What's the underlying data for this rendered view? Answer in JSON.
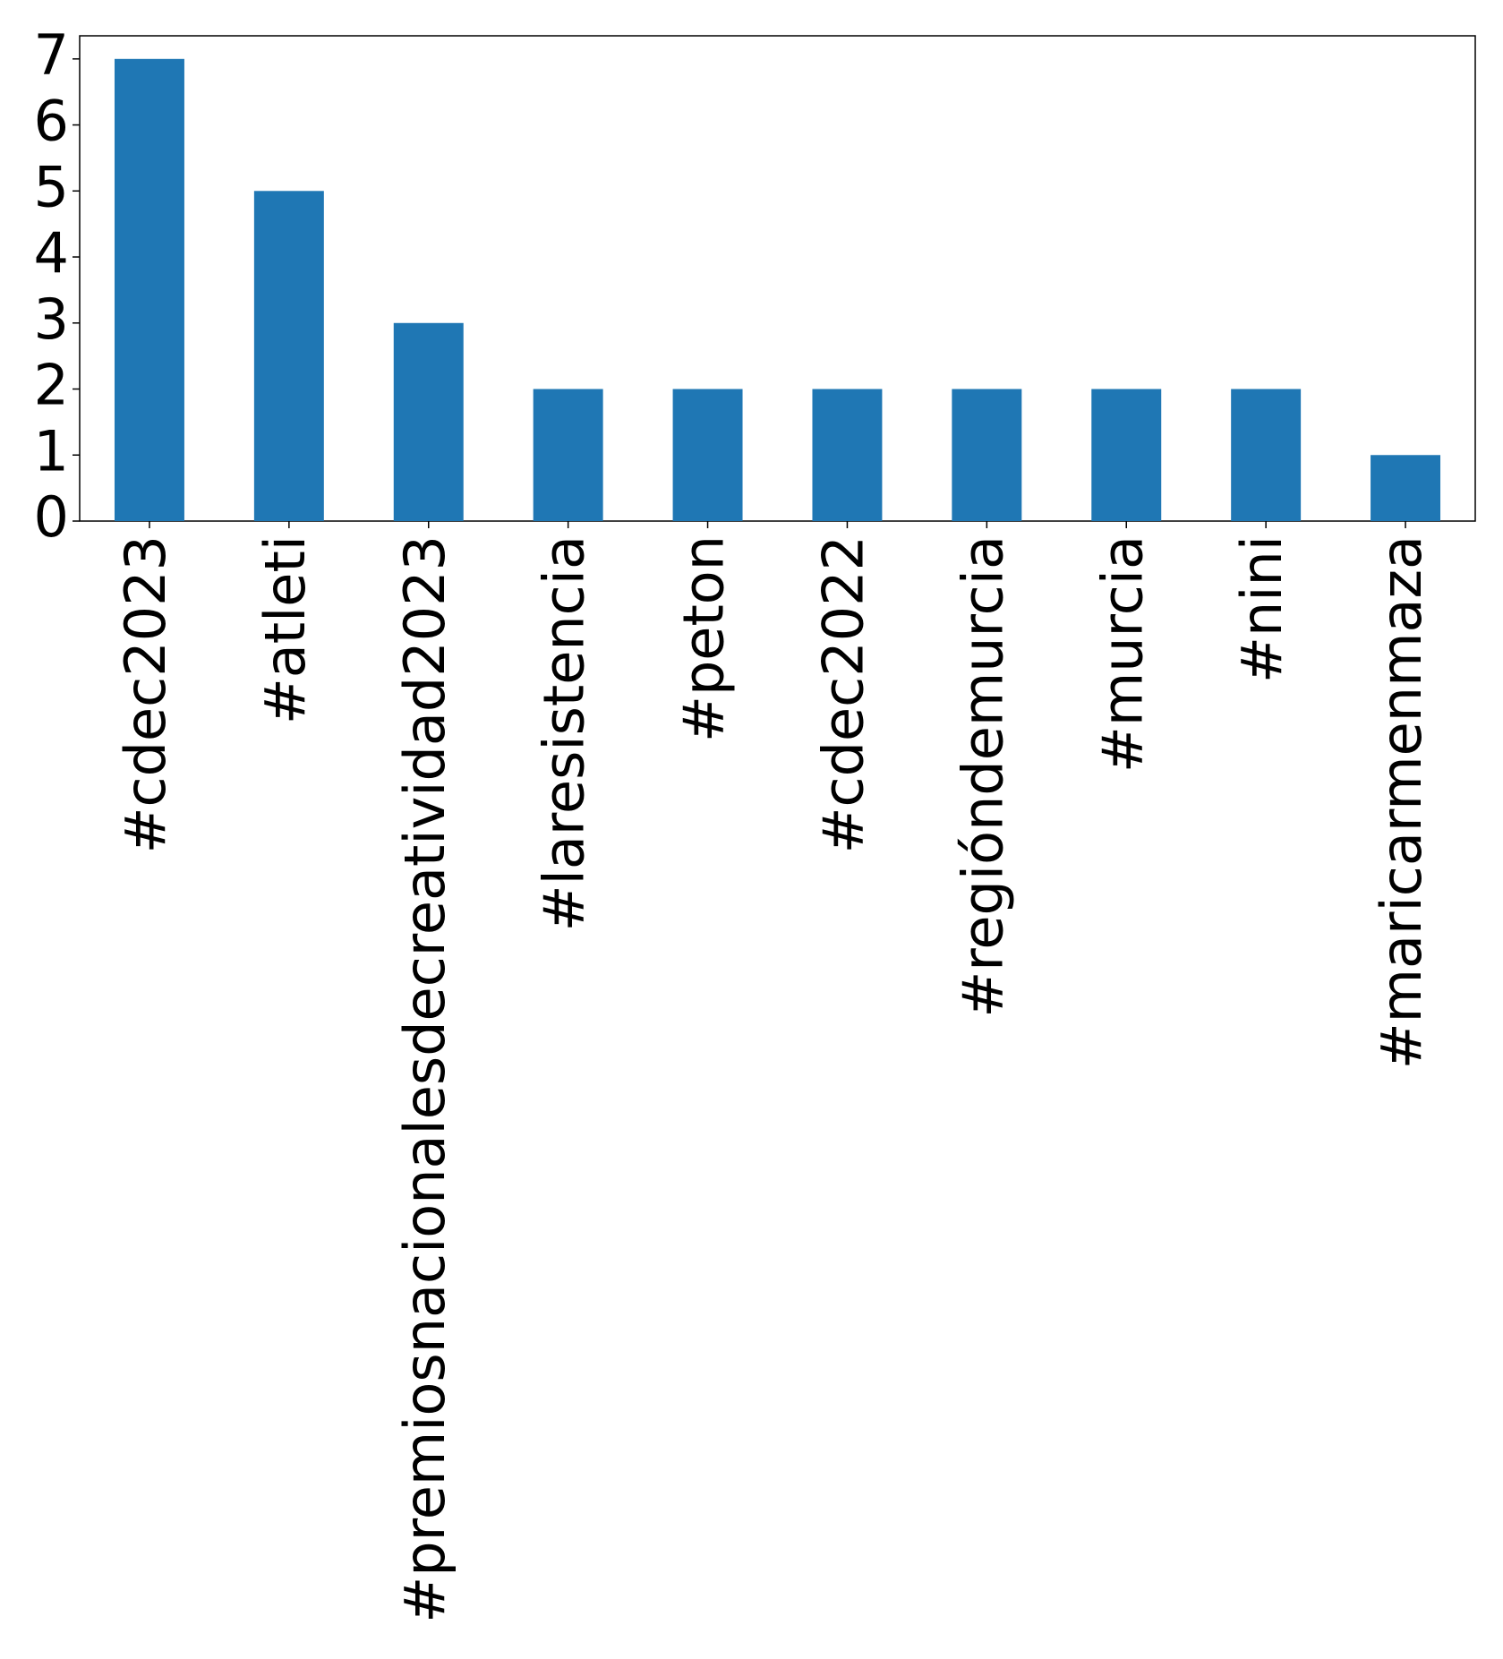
{
  "chart_data": {
    "type": "bar",
    "categories": [
      "#cdec2023",
      "#atleti",
      "#premiosnacionalesdecreatividad2023",
      "#laresistencia",
      "#peton",
      "#cdec2022",
      "#regióndemurcia",
      "#murcia",
      "#nini",
      "#maricarmenmaza"
    ],
    "values": [
      7,
      5,
      3,
      2,
      2,
      2,
      2,
      2,
      2,
      1
    ],
    "color": "#1f77b4",
    "ylim": [
      0,
      7.35
    ],
    "yticks": [
      0,
      1,
      2,
      3,
      4,
      5,
      6,
      7
    ],
    "grid": false
  }
}
